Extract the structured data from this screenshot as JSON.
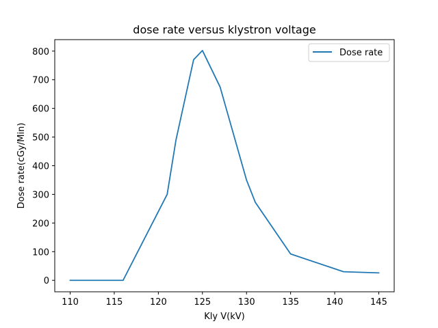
{
  "chart_data": {
    "type": "line",
    "title": "dose rate versus klystron voltage",
    "xlabel": "Kly V(kV)",
    "ylabel": "Dose rate(cGy/Min)",
    "xlim": [
      108.25,
      146.75
    ],
    "ylim": [
      -40,
      840
    ],
    "xticks": [
      110,
      115,
      120,
      125,
      130,
      135,
      140,
      145
    ],
    "yticks": [
      0,
      100,
      200,
      300,
      400,
      500,
      600,
      700,
      800
    ],
    "grid": false,
    "legend_position": "top-right",
    "series": [
      {
        "name": "Dose rate",
        "color": "#1f77b4",
        "x": [
          110,
          116,
          121,
          122,
          124,
          125,
          127,
          130,
          131,
          135,
          141,
          145
        ],
        "y": [
          0,
          0,
          300,
          490,
          770,
          802,
          675,
          350,
          272,
          92,
          30,
          26
        ]
      }
    ]
  }
}
